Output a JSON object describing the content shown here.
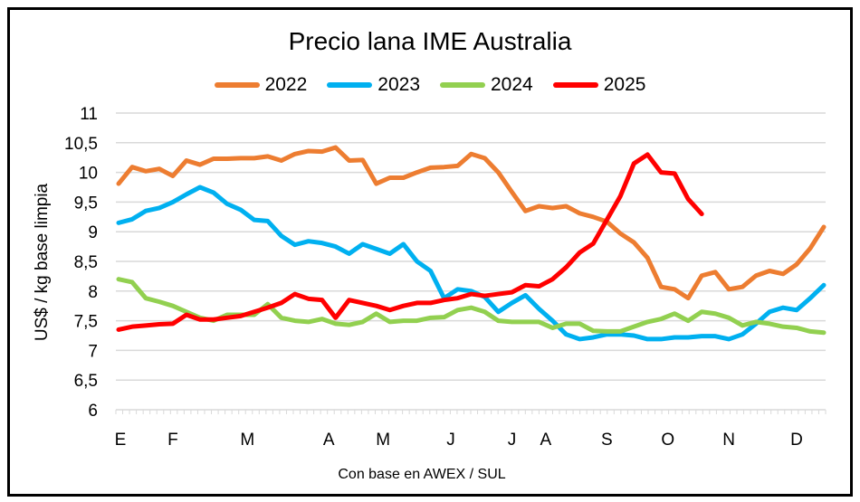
{
  "chart_data": {
    "type": "line",
    "title": "Precio lana IME Australia",
    "xlabel": "Con base en AWEX / SUL",
    "ylabel": "US$ / kg base limpia",
    "ylim": [
      6,
      11
    ],
    "yticks": [
      "6",
      "6,5",
      "7",
      "7,5",
      "8",
      "8,5",
      "9",
      "9,5",
      "10",
      "10,5",
      "11"
    ],
    "ytick_values": [
      6,
      6.5,
      7,
      7.5,
      8,
      8.5,
      9,
      9.5,
      10,
      10.5,
      11
    ],
    "x_unit": "week of year",
    "xlim": [
      0,
      52
    ],
    "month_labels": [
      {
        "label": "E",
        "week": 0
      },
      {
        "label": "F",
        "week": 4
      },
      {
        "label": "M",
        "week": 9.5
      },
      {
        "label": "A",
        "week": 15.5
      },
      {
        "label": "M",
        "week": 19.5
      },
      {
        "label": "J",
        "week": 24.5
      },
      {
        "label": "J",
        "week": 29
      },
      {
        "label": "A",
        "week": 31.5
      },
      {
        "label": "S",
        "week": 36
      },
      {
        "label": "O",
        "week": 40.5
      },
      {
        "label": "N",
        "week": 45
      },
      {
        "label": "D",
        "week": 50
      }
    ],
    "grid": true,
    "legend_position": "top",
    "series": [
      {
        "name": "2022",
        "color": "#ED7D31",
        "values": [
          9.81,
          10.09,
          10.02,
          10.06,
          9.94,
          10.2,
          10.13,
          10.23,
          10.23,
          10.24,
          10.24,
          10.27,
          10.2,
          10.31,
          10.36,
          10.35,
          10.42,
          10.2,
          10.21,
          9.81,
          9.91,
          9.91,
          10.0,
          10.08,
          10.09,
          10.11,
          10.31,
          10.24,
          10.0,
          9.67,
          9.35,
          9.43,
          9.4,
          9.43,
          9.31,
          9.25,
          9.17,
          8.97,
          8.82,
          8.56,
          8.07,
          8.03,
          7.88,
          8.26,
          8.32,
          8.03,
          8.07,
          8.26,
          8.34,
          8.29,
          8.45,
          8.72,
          9.08
        ]
      },
      {
        "name": "2023",
        "color": "#00B0F0",
        "values": [
          9.15,
          9.21,
          9.35,
          9.4,
          9.5,
          9.63,
          9.75,
          9.66,
          9.47,
          9.37,
          9.2,
          9.18,
          8.93,
          8.78,
          8.84,
          8.81,
          8.75,
          8.63,
          8.79,
          8.71,
          8.63,
          8.79,
          8.5,
          8.34,
          7.88,
          8.03,
          8.0,
          7.9,
          7.65,
          7.8,
          7.93,
          7.7,
          7.5,
          7.27,
          7.19,
          7.22,
          7.27,
          7.27,
          7.25,
          7.19,
          7.19,
          7.22,
          7.22,
          7.24,
          7.24,
          7.19,
          7.27,
          7.45,
          7.65,
          7.72,
          7.68,
          7.88,
          8.1
        ]
      },
      {
        "name": "2024",
        "color": "#92D050",
        "values": [
          8.2,
          8.15,
          7.88,
          7.82,
          7.75,
          7.65,
          7.55,
          7.5,
          7.6,
          7.6,
          7.6,
          7.78,
          7.55,
          7.5,
          7.48,
          7.53,
          7.45,
          7.43,
          7.48,
          7.62,
          7.48,
          7.5,
          7.5,
          7.55,
          7.56,
          7.68,
          7.72,
          7.65,
          7.5,
          7.48,
          7.48,
          7.48,
          7.38,
          7.45,
          7.45,
          7.33,
          7.32,
          7.32,
          7.4,
          7.48,
          7.53,
          7.62,
          7.5,
          7.65,
          7.62,
          7.55,
          7.42,
          7.48,
          7.45,
          7.4,
          7.38,
          7.32,
          7.3
        ]
      },
      {
        "name": "2025",
        "color": "#FF0000",
        "values": [
          7.35,
          7.4,
          7.42,
          7.44,
          7.45,
          7.6,
          7.52,
          7.52,
          7.55,
          7.58,
          7.65,
          7.72,
          7.8,
          7.95,
          7.87,
          7.85,
          7.55,
          7.85,
          7.8,
          7.75,
          7.68,
          7.75,
          7.8,
          7.8,
          7.85,
          7.88,
          7.95,
          7.92,
          7.95,
          7.98,
          8.1,
          8.08,
          8.2,
          8.4,
          8.65,
          8.8,
          9.2,
          9.6,
          10.15,
          10.3,
          10.0,
          9.98,
          9.55,
          9.3
        ]
      }
    ]
  }
}
